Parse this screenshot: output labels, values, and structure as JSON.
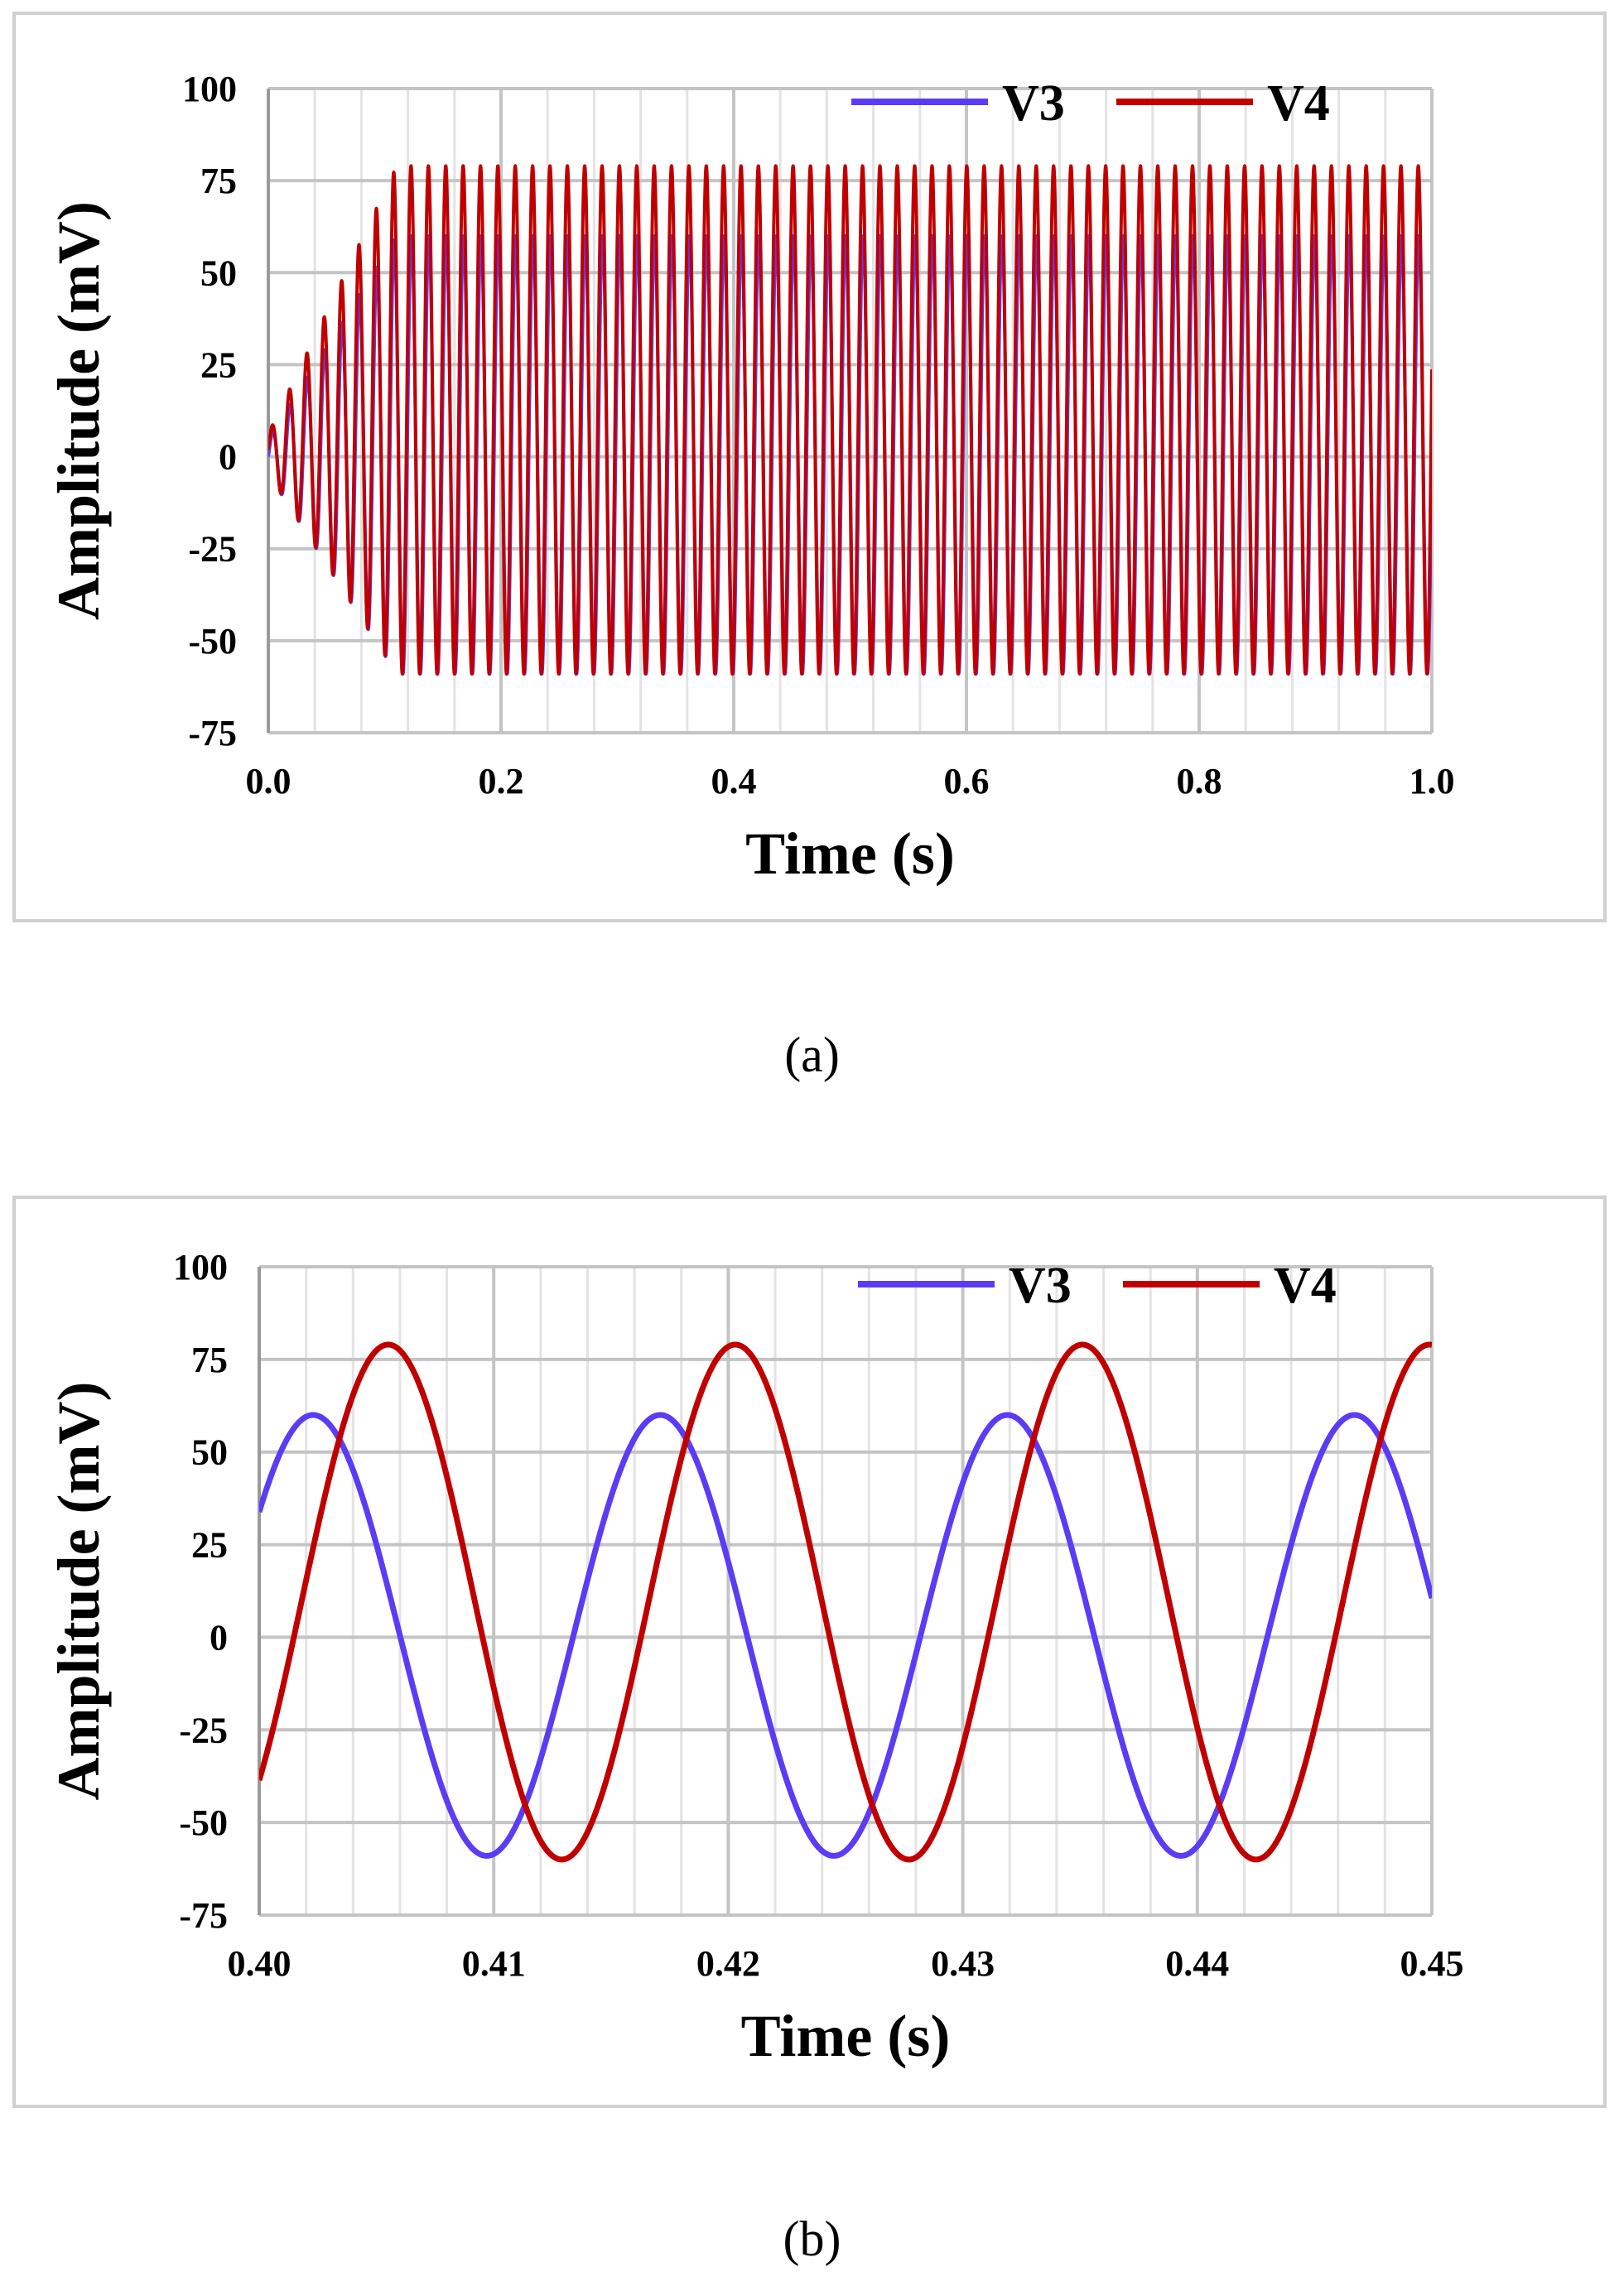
{
  "panels": [
    {
      "caption": "(a)",
      "chart_data": {
        "type": "line",
        "xlabel": "Time (s)",
        "ylabel": "Amplitude (mV)",
        "xlim": [
          0.0,
          1.0
        ],
        "ylim": [
          -75,
          100
        ],
        "x_ticks": [
          0.0,
          0.2,
          0.4,
          0.6,
          0.8,
          1.0
        ],
        "x_tick_labels": [
          "0.0",
          "0.2",
          "0.4",
          "0.6",
          "0.8",
          "1.0"
        ],
        "y_ticks": [
          -75,
          -50,
          -25,
          0,
          25,
          50,
          75,
          100
        ],
        "y_tick_labels": [
          "-75",
          "-50",
          "-25",
          "0",
          "25",
          "50",
          "75",
          "100"
        ],
        "grid": true,
        "legend_position": "top-right",
        "series": [
          {
            "name": "V3",
            "color": "#5b3cf5",
            "amplitude_max": 60,
            "amplitude_min": -59,
            "frequency_hz": 67,
            "phase_offset": 0,
            "onset_s": 0.12
          },
          {
            "name": "V4",
            "color": "#c00000",
            "amplitude_max": 79,
            "amplitude_min": -59,
            "frequency_hz": 67,
            "phase_offset": 0.2,
            "onset_s": 0.12
          }
        ]
      }
    },
    {
      "caption": "(b)",
      "chart_data": {
        "type": "line",
        "xlabel": "Time (s)",
        "ylabel": "Amplitude (mV)",
        "xlim": [
          0.4,
          0.45
        ],
        "ylim": [
          -75,
          100
        ],
        "x_ticks": [
          0.4,
          0.41,
          0.42,
          0.43,
          0.44,
          0.45
        ],
        "x_tick_labels": [
          "0.40",
          "0.41",
          "0.42",
          "0.43",
          "0.44",
          "0.45"
        ],
        "y_ticks": [
          -75,
          -50,
          -25,
          0,
          25,
          50,
          75,
          100
        ],
        "y_tick_labels": [
          "-75",
          "-50",
          "-25",
          "0",
          "25",
          "50",
          "75",
          "100"
        ],
        "grid": true,
        "legend_position": "top-right",
        "series": [
          {
            "name": "V3",
            "color": "#5b3cf5",
            "amplitude_max": 60,
            "amplitude_min": -59,
            "period_s": 0.0148,
            "peak_times_s": [
              0.4023,
              0.4171,
              0.4319,
              0.4467
            ],
            "trough_times_s": [
              0.4098,
              0.4247,
              0.4395
            ]
          },
          {
            "name": "V4",
            "color": "#c00000",
            "amplitude_max": 79,
            "amplitude_min": -60,
            "period_s": 0.0148,
            "peak_times_s": [
              0.4055,
              0.4203,
              0.4351,
              0.4499
            ],
            "trough_times_s": [
              0.4131,
              0.4279,
              0.4427
            ]
          }
        ]
      }
    }
  ]
}
